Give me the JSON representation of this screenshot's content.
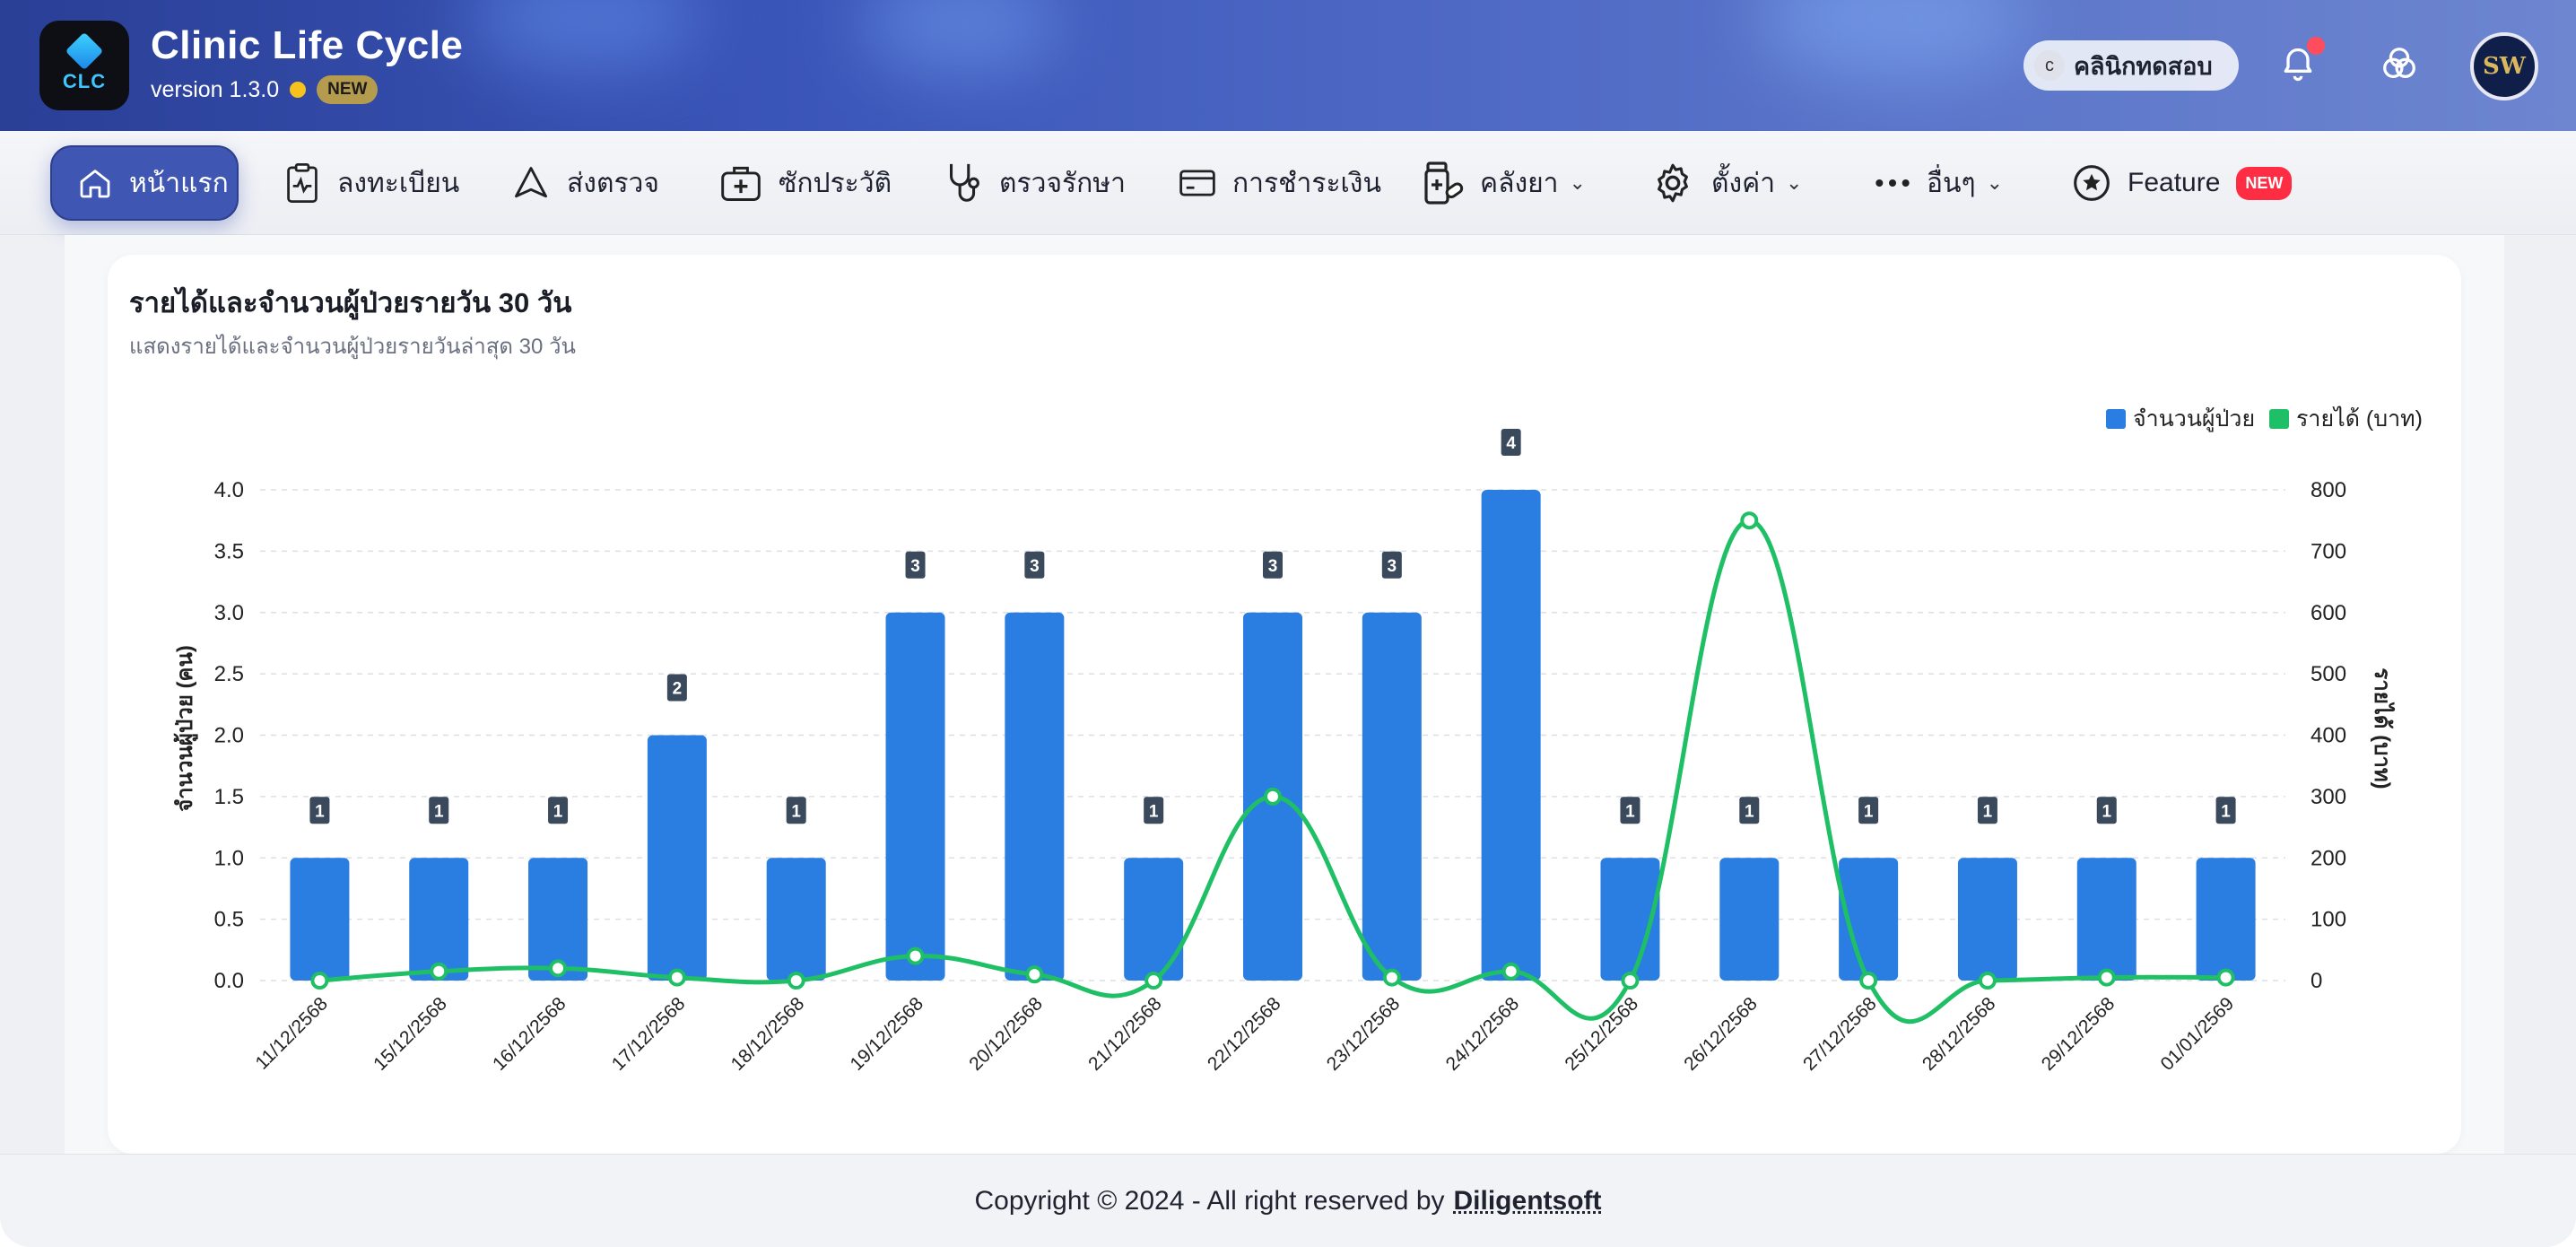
{
  "header": {
    "logo_text": "CLC",
    "app_title": "Clinic Life Cycle",
    "version": "version 1.3.0",
    "version_badge": "NEW",
    "clinic_initial": "c",
    "clinic_name": "คลินิกทดสอบ",
    "avatar_text": "SW"
  },
  "nav": {
    "items": [
      {
        "label": "หน้าแรก",
        "icon": "home-icon",
        "active": true
      },
      {
        "label": "ลงทะเบียน",
        "icon": "clipboard-pulse-icon"
      },
      {
        "label": "ส่งตรวจ",
        "icon": "send-triangle-icon"
      },
      {
        "label": "ซักประวัติ",
        "icon": "medical-kit-icon"
      },
      {
        "label": "ตรวจรักษา",
        "icon": "stethoscope-icon"
      },
      {
        "label": "การชำระเงิน",
        "icon": "credit-card-icon"
      },
      {
        "label": "คลังยา",
        "icon": "medicine-bottle-icon",
        "dropdown": true
      },
      {
        "label": "ตั้งค่า",
        "icon": "gear-icon",
        "dropdown": true
      },
      {
        "label": "อื่นๆ",
        "icon": "more-dots-icon",
        "dropdown": true
      },
      {
        "label": "Feature",
        "icon": "star-icon",
        "badge": "NEW"
      }
    ]
  },
  "card": {
    "title": "รายได้และจำนวนผู้ป่วยรายวัน 30 วัน",
    "subtitle": "แสดงรายได้และจำนวนผู้ป่วยรายวันล่าสุด 30 วัน"
  },
  "chart_data": {
    "type": "bar",
    "categories": [
      "11/12/2568",
      "15/12/2568",
      "16/12/2568",
      "17/12/2568",
      "18/12/2568",
      "19/12/2568",
      "20/12/2568",
      "21/12/2568",
      "22/12/2568",
      "23/12/2568",
      "24/12/2568",
      "25/12/2568",
      "26/12/2568",
      "27/12/2568",
      "28/12/2568",
      "29/12/2568",
      "01/01/2569"
    ],
    "series": [
      {
        "name": "จำนวนผู้ป่วย",
        "type": "bar",
        "axis": "left",
        "color": "#2a7de1",
        "values": [
          1,
          1,
          1,
          2,
          1,
          3,
          3,
          1,
          3,
          3,
          4,
          1,
          1,
          1,
          1,
          1,
          1
        ]
      },
      {
        "name": "รายได้ (บาท)",
        "type": "line",
        "axis": "right",
        "color": "#1fbf66",
        "values": [
          0,
          15,
          20,
          5,
          0,
          40,
          10,
          0,
          300,
          5,
          15,
          0,
          750,
          0,
          0,
          5,
          5
        ]
      }
    ],
    "ylabel_left": "จำนวนผู้ป่วย (คน)",
    "ylabel_right": "รายได้ (บาท)",
    "ylim_left": [
      0,
      4
    ],
    "ylim_right": [
      0,
      800
    ],
    "yticks_left": [
      "0.0",
      "0.5",
      "1.0",
      "1.5",
      "2.0",
      "2.5",
      "3.0",
      "3.5",
      "4.0"
    ],
    "yticks_right": [
      "0",
      "100",
      "200",
      "300",
      "400",
      "500",
      "600",
      "700",
      "800"
    ],
    "grid": true,
    "legend_position": "top-right"
  },
  "footer": {
    "copyright": "Copyright © 2024 - All right reserved by",
    "company": "Diligentsoft"
  },
  "colors": {
    "header_primary": "#3a55b8",
    "nav_active": "#3f56b3",
    "bar": "#2a7de1",
    "line": "#1fbf66"
  }
}
